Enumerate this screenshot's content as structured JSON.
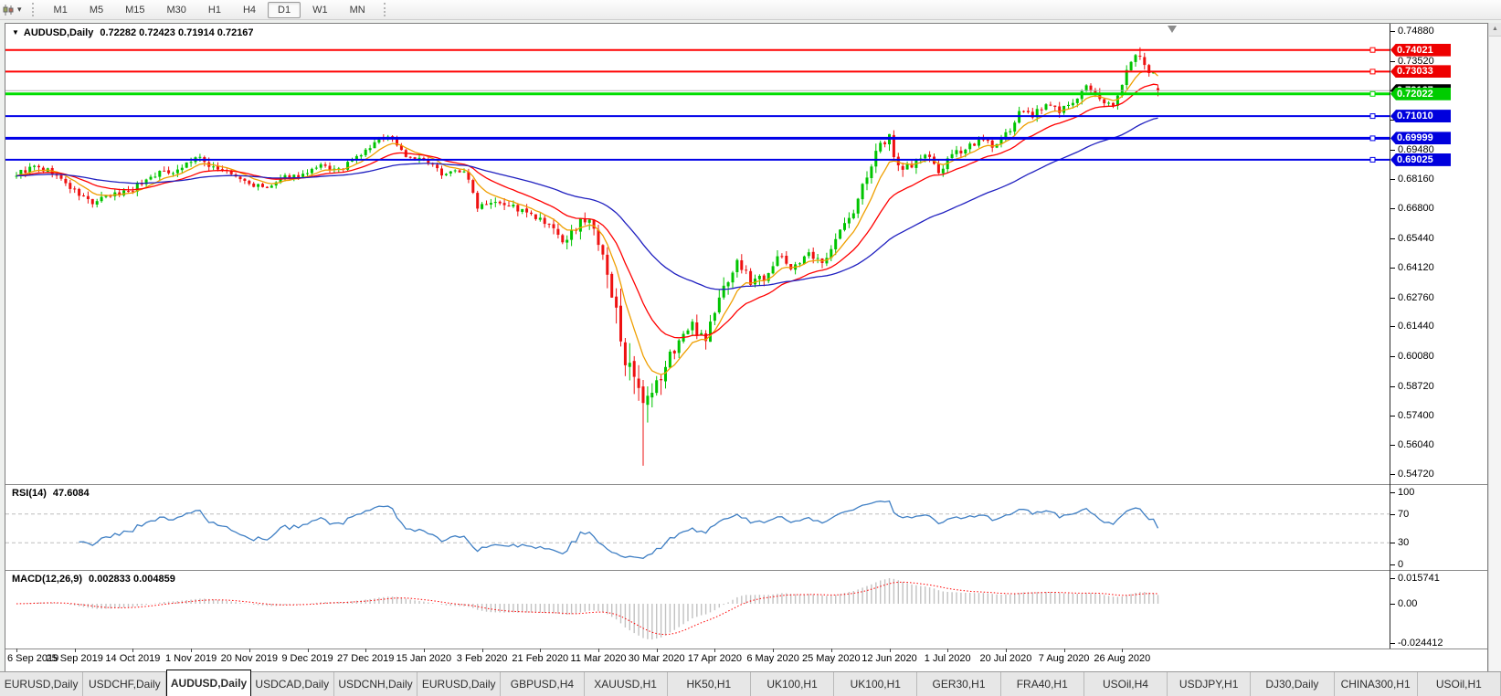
{
  "toolbar": {
    "timeframes": [
      "M1",
      "M5",
      "M15",
      "M30",
      "H1",
      "H4",
      "D1",
      "W1",
      "MN"
    ],
    "active_timeframe": "D1"
  },
  "chart": {
    "symbol_label": "AUDUSD,Daily",
    "ohlc_label": "0.72282 0.72423 0.71914 0.72167",
    "collapse_arrow": "▼"
  },
  "chart_data": {
    "type": "candlestick",
    "symbol": "AUDUSD",
    "timeframe": "Daily",
    "n_candles": 256,
    "candles_per_label": 13,
    "seed": 9,
    "up_color": "#00c400",
    "down_color": "#ee1111",
    "price_anchors": [
      [
        0,
        0.6838,
        0.005
      ],
      [
        4,
        0.6868,
        0.005
      ],
      [
        8,
        0.6845,
        0.005
      ],
      [
        13,
        0.6758,
        0.005
      ],
      [
        17,
        0.6705,
        0.006
      ],
      [
        20,
        0.6728,
        0.005
      ],
      [
        26,
        0.6772,
        0.005
      ],
      [
        31,
        0.6838,
        0.005
      ],
      [
        36,
        0.6858,
        0.005
      ],
      [
        40,
        0.6912,
        0.005
      ],
      [
        43,
        0.688,
        0.005
      ],
      [
        47,
        0.6845,
        0.004
      ],
      [
        52,
        0.6792,
        0.004
      ],
      [
        56,
        0.677,
        0.004
      ],
      [
        60,
        0.6822,
        0.004
      ],
      [
        65,
        0.6838,
        0.004
      ],
      [
        68,
        0.6872,
        0.004
      ],
      [
        72,
        0.6852,
        0.004
      ],
      [
        78,
        0.6942,
        0.004
      ],
      [
        82,
        0.7012,
        0.004
      ],
      [
        84,
        0.6998,
        0.004
      ],
      [
        87,
        0.692,
        0.004
      ],
      [
        91,
        0.6898,
        0.004
      ],
      [
        95,
        0.6842,
        0.004
      ],
      [
        100,
        0.6855,
        0.004
      ],
      [
        103,
        0.6695,
        0.005
      ],
      [
        107,
        0.6722,
        0.005
      ],
      [
        111,
        0.6688,
        0.005
      ],
      [
        117,
        0.6625,
        0.005
      ],
      [
        121,
        0.6562,
        0.007
      ],
      [
        123,
        0.6515,
        0.009
      ],
      [
        126,
        0.6642,
        0.008
      ],
      [
        129,
        0.6592,
        0.009
      ],
      [
        131,
        0.6448,
        0.012
      ],
      [
        133,
        0.627,
        0.016
      ],
      [
        135,
        0.6122,
        0.018
      ],
      [
        137,
        0.5925,
        0.02
      ],
      [
        140,
        0.5748,
        0.024
      ],
      [
        142,
        0.5812,
        0.018
      ],
      [
        145,
        0.5962,
        0.014
      ],
      [
        148,
        0.6088,
        0.012
      ],
      [
        151,
        0.6142,
        0.01
      ],
      [
        154,
        0.6098,
        0.009
      ],
      [
        158,
        0.6322,
        0.009
      ],
      [
        161,
        0.6438,
        0.008
      ],
      [
        164,
        0.6352,
        0.008
      ],
      [
        167,
        0.6372,
        0.007
      ],
      [
        170,
        0.6462,
        0.007
      ],
      [
        173,
        0.6415,
        0.006
      ],
      [
        177,
        0.6465,
        0.006
      ],
      [
        180,
        0.6428,
        0.006
      ],
      [
        183,
        0.6552,
        0.006
      ],
      [
        187,
        0.6662,
        0.006
      ],
      [
        190,
        0.6838,
        0.007
      ],
      [
        193,
        0.6962,
        0.008
      ],
      [
        195,
        0.7005,
        0.009
      ],
      [
        197,
        0.6872,
        0.009
      ],
      [
        200,
        0.6875,
        0.007
      ],
      [
        203,
        0.6925,
        0.006
      ],
      [
        206,
        0.6848,
        0.006
      ],
      [
        209,
        0.6918,
        0.005
      ],
      [
        213,
        0.6972,
        0.005
      ],
      [
        216,
        0.6988,
        0.005
      ],
      [
        219,
        0.6962,
        0.005
      ],
      [
        222,
        0.7042,
        0.005
      ],
      [
        224,
        0.7128,
        0.005
      ],
      [
        227,
        0.7102,
        0.005
      ],
      [
        230,
        0.7152,
        0.005
      ],
      [
        233,
        0.7128,
        0.005
      ],
      [
        236,
        0.7162,
        0.005
      ],
      [
        239,
        0.7232,
        0.006
      ],
      [
        242,
        0.7172,
        0.005
      ],
      [
        245,
        0.7162,
        0.005
      ],
      [
        247,
        0.7238,
        0.005
      ],
      [
        249,
        0.7365,
        0.006
      ],
      [
        251,
        0.7378,
        0.006
      ],
      [
        253,
        0.7282,
        0.005
      ],
      [
        254,
        0.7288,
        0.004
      ],
      [
        255,
        0.7217,
        0.004
      ]
    ],
    "overrides": {
      "140": {
        "low": 0.551
      },
      "251": {
        "high": 0.7414
      },
      "255": {
        "open": 0.72282,
        "high": 0.72423,
        "low": 0.71914,
        "close": 0.72167
      }
    },
    "date_labels": [
      "6 Sep 2019",
      "25 Sep 2019",
      "14 Oct 2019",
      "1 Nov 2019",
      "20 Nov 2019",
      "9 Dec 2019",
      "27 Dec 2019",
      "15 Jan 2020",
      "3 Feb 2020",
      "21 Feb 2020",
      "11 Mar 2020",
      "30 Mar 2020",
      "17 Apr 2020",
      "6 May 2020",
      "25 May 2020",
      "12 Jun 2020",
      "1 Jul 2020",
      "20 Jul 2020",
      "7 Aug 2020",
      "26 Aug 2020"
    ],
    "y_axis": {
      "max": 0.7488,
      "min": 0.5472,
      "ticks": [
        "0.74880",
        "0.73520",
        "0.72160",
        "0.70840",
        "0.69480",
        "0.68160",
        "0.66800",
        "0.65440",
        "0.64120",
        "0.62760",
        "0.61440",
        "0.60080",
        "0.58720",
        "0.57400",
        "0.56040",
        "0.54720"
      ]
    },
    "moving_averages": [
      {
        "period": 8,
        "color": "#ef9f00",
        "name": "MA-fast-orange"
      },
      {
        "period": 20,
        "color": "#ff0000",
        "name": "MA-mid-red"
      },
      {
        "period": 55,
        "color": "#2020c0",
        "name": "MA-slow-blue"
      }
    ],
    "horizontal_lines": [
      {
        "price": 0.74021,
        "label": "0.74021",
        "color": "#ff0000",
        "tag_bg": "#ee0000",
        "width": 2
      },
      {
        "price": 0.73033,
        "label": "0.73033",
        "color": "#ff0000",
        "tag_bg": "#ee0000",
        "width": 2
      },
      {
        "price": 0.72022,
        "label": "0.72022",
        "color": "#00dd00",
        "tag_bg": "#00cc00",
        "width": 3
      },
      {
        "price": 0.7101,
        "label": "0.71010",
        "color": "#0000e8",
        "tag_bg": "#0000dd",
        "width": 2
      },
      {
        "price": 0.69999,
        "label": "0.69999",
        "color": "#0000e8",
        "tag_bg": "#0000dd",
        "width": 3
      },
      {
        "price": 0.69025,
        "label": "0.69025",
        "color": "#0000e8",
        "tag_bg": "#0000dd",
        "width": 2
      }
    ],
    "current_price": {
      "value": "0.72167",
      "price": 0.72167,
      "line_color": "#b2b2b2",
      "tag_bg": "#000000"
    },
    "rsi": {
      "name": "RSI(14)",
      "value": "47.6084",
      "period": 14,
      "color": "#3f7fc4",
      "levels": [
        "100",
        "70",
        "30",
        "0"
      ],
      "dashed_levels": [
        70,
        30
      ],
      "range": [
        0,
        100
      ]
    },
    "macd": {
      "name": "MACD(12,26,9)",
      "values": "0.002833 0.004859",
      "fast": 12,
      "slow": 26,
      "signal": 9,
      "bar_color": "#c2c2c2",
      "signal_color": "#ff0000",
      "axis_ticks": [
        "0.015741",
        "0.00",
        "-0.024412"
      ]
    }
  },
  "tabs": {
    "active_index": 2,
    "items": [
      "EURUSD,Daily",
      "USDCHF,Daily",
      "AUDUSD,Daily",
      "USDCAD,Daily",
      "USDCNH,Daily",
      "EURUSD,Daily",
      "GBPUSD,H4",
      "XAUUSD,H1",
      "HK50,H1",
      "UK100,H1",
      "UK100,H1",
      "GER30,H1",
      "FRA40,H1",
      "USOil,H4",
      "USDJPY,H1",
      "DJ30,Daily",
      "CHINA300,H1",
      "USOil,H1"
    ]
  },
  "scrollbar": {
    "up_arrow": "▲"
  }
}
